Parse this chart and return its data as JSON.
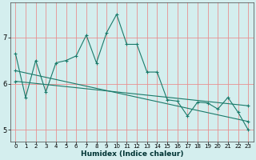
{
  "xlabel": "Humidex (Indice chaleur)",
  "background_color": "#d4eeee",
  "grid_color": "#e89090",
  "line_color": "#1a7a6a",
  "xlim": [
    -0.5,
    23.5
  ],
  "ylim": [
    4.75,
    7.75
  ],
  "yticks": [
    5,
    6,
    7
  ],
  "xticks": [
    0,
    1,
    2,
    3,
    4,
    5,
    6,
    7,
    8,
    9,
    10,
    11,
    12,
    13,
    14,
    15,
    16,
    17,
    18,
    19,
    20,
    21,
    22,
    23
  ],
  "series1_x": [
    0,
    1,
    2,
    3,
    4,
    5,
    6,
    7,
    8,
    9,
    10,
    11,
    12,
    13,
    14,
    15,
    16,
    17,
    18,
    19,
    20,
    21,
    22,
    23
  ],
  "series1_y": [
    6.65,
    5.7,
    6.5,
    5.82,
    6.45,
    6.5,
    6.6,
    7.05,
    6.45,
    7.1,
    7.5,
    6.85,
    6.85,
    6.25,
    6.25,
    5.65,
    5.62,
    5.3,
    5.6,
    5.58,
    5.45,
    5.7,
    5.38,
    5.0
  ],
  "series2_x": [
    0,
    23
  ],
  "series2_y": [
    6.28,
    5.18
  ],
  "series3_x": [
    0,
    23
  ],
  "series3_y": [
    6.05,
    5.52
  ]
}
